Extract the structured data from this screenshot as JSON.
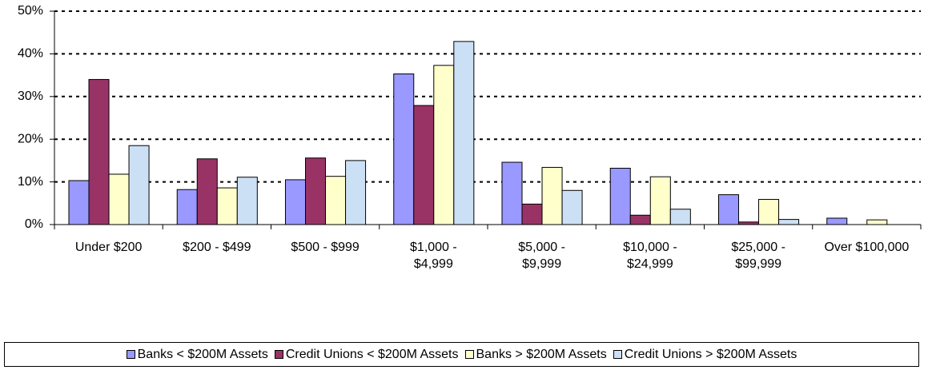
{
  "chart_data": {
    "type": "bar",
    "categories": [
      "Under $200",
      "$200 - $499",
      "$500 - $999",
      "$1,000 - $4,999",
      "$5,000 - $9,999",
      "$10,000 - $24,999",
      "$25,000 - $99,999",
      "Over $100,000"
    ],
    "series": [
      {
        "name": "Banks < $200M Assets",
        "color": "#9999ff",
        "values": [
          10.3,
          8.2,
          10.5,
          35.3,
          14.6,
          13.2,
          7.0,
          1.5
        ]
      },
      {
        "name": "Credit Unions < $200M Assets",
        "color": "#993366",
        "values": [
          34.0,
          15.4,
          15.6,
          27.9,
          4.8,
          2.2,
          0.6,
          0
        ]
      },
      {
        "name": "Banks > $200M Assets",
        "color": "#ffffcc",
        "values": [
          11.8,
          8.6,
          11.3,
          37.3,
          13.4,
          11.2,
          5.9,
          1.1
        ]
      },
      {
        "name": "Credit Unions > $200M Assets",
        "color": "#cce0f5",
        "values": [
          18.5,
          11.1,
          15.0,
          42.9,
          8.0,
          3.6,
          1.2,
          0
        ]
      }
    ],
    "ylim": [
      0,
      50
    ],
    "yticks": [
      {
        "value": 0,
        "label": "0%"
      },
      {
        "value": 10,
        "label": "10%"
      },
      {
        "value": 20,
        "label": "20%"
      },
      {
        "value": 30,
        "label": "30%"
      },
      {
        "value": 40,
        "label": "40%"
      },
      {
        "value": 50,
        "label": "50%"
      }
    ],
    "grid": true,
    "legend": "bottom"
  }
}
